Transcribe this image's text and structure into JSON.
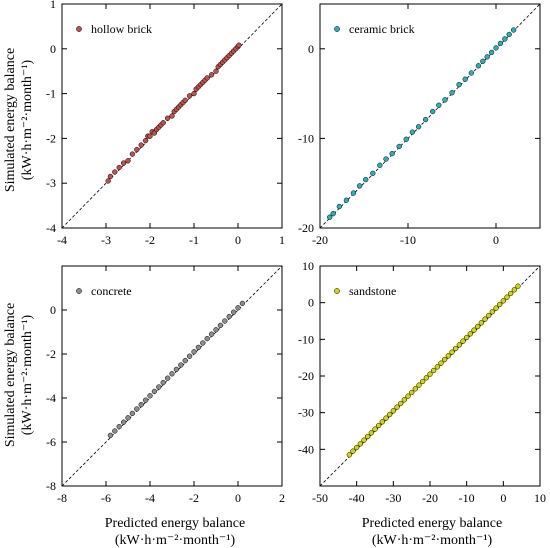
{
  "figure": {
    "ylabel_line1": "Simulated energy balance",
    "ylabel_line2": "(kW·h·m⁻²·month⁻¹)",
    "xlabel_line1": "Predicted energy balance",
    "xlabel_line2": "(kW·h·m⁻²·month⁻¹)"
  },
  "chart_data": [
    {
      "type": "scatter",
      "material": "hollow brick",
      "color": "#c0504d",
      "xlim": [
        -4,
        1
      ],
      "ylim": [
        -4,
        1
      ],
      "xticks": [
        -4,
        -3,
        -2,
        -1,
        0,
        1
      ],
      "yticks": [
        -4,
        -3,
        -2,
        -1,
        0,
        1
      ],
      "reference_line": "y = x (dashed)",
      "series": [
        {
          "name": "hollow brick",
          "points": [
            [
              -2.95,
              -2.95
            ],
            [
              -2.9,
              -2.85
            ],
            [
              -2.8,
              -2.75
            ],
            [
              -2.7,
              -2.65
            ],
            [
              -2.6,
              -2.55
            ],
            [
              -2.5,
              -2.5
            ],
            [
              -2.4,
              -2.35
            ],
            [
              -2.3,
              -2.25
            ],
            [
              -2.2,
              -2.15
            ],
            [
              -2.1,
              -2.05
            ],
            [
              -2.05,
              -1.95
            ],
            [
              -2.0,
              -1.95
            ],
            [
              -1.95,
              -1.85
            ],
            [
              -1.9,
              -1.88
            ],
            [
              -1.85,
              -1.8
            ],
            [
              -1.8,
              -1.75
            ],
            [
              -1.75,
              -1.7
            ],
            [
              -1.7,
              -1.65
            ],
            [
              -1.6,
              -1.55
            ],
            [
              -1.5,
              -1.5
            ],
            [
              -1.45,
              -1.4
            ],
            [
              -1.4,
              -1.35
            ],
            [
              -1.35,
              -1.3
            ],
            [
              -1.3,
              -1.25
            ],
            [
              -1.25,
              -1.2
            ],
            [
              -1.2,
              -1.15
            ],
            [
              -1.1,
              -1.05
            ],
            [
              -1.0,
              -1.0
            ],
            [
              -0.95,
              -0.9
            ],
            [
              -0.9,
              -0.85
            ],
            [
              -0.85,
              -0.8
            ],
            [
              -0.8,
              -0.75
            ],
            [
              -0.75,
              -0.7
            ],
            [
              -0.7,
              -0.65
            ],
            [
              -0.6,
              -0.58
            ],
            [
              -0.5,
              -0.5
            ],
            [
              -0.45,
              -0.4
            ],
            [
              -0.4,
              -0.35
            ],
            [
              -0.35,
              -0.3
            ],
            [
              -0.3,
              -0.25
            ],
            [
              -0.25,
              -0.2
            ],
            [
              -0.2,
              -0.15
            ],
            [
              -0.15,
              -0.1
            ],
            [
              -0.1,
              -0.05
            ],
            [
              -0.05,
              0.0
            ],
            [
              0.0,
              0.05
            ],
            [
              0.02,
              0.08
            ]
          ]
        }
      ]
    },
    {
      "type": "scatter",
      "material": "ceramic brick",
      "color": "#2bb0b8",
      "xlim": [
        -20,
        5
      ],
      "ylim": [
        -20,
        5
      ],
      "xticks": [
        -20,
        -10,
        0
      ],
      "yticks": [
        -20,
        -10,
        0
      ],
      "reference_line": "y = x (dashed)",
      "series": [
        {
          "name": "ceramic brick",
          "points": [
            [
              -18.9,
              -18.8
            ],
            [
              -18.5,
              -18.4
            ],
            [
              -17.8,
              -17.6
            ],
            [
              -17.0,
              -16.9
            ],
            [
              -16.2,
              -16.1
            ],
            [
              -15.5,
              -15.3
            ],
            [
              -14.8,
              -14.6
            ],
            [
              -14.0,
              -13.9
            ],
            [
              -13.2,
              -13.0
            ],
            [
              -12.5,
              -12.3
            ],
            [
              -11.8,
              -11.7
            ],
            [
              -11.0,
              -10.9
            ],
            [
              -10.2,
              -10.1
            ],
            [
              -9.5,
              -9.3
            ],
            [
              -8.8,
              -8.7
            ],
            [
              -8.0,
              -7.9
            ],
            [
              -7.2,
              -7.0
            ],
            [
              -6.5,
              -6.3
            ],
            [
              -5.8,
              -5.7
            ],
            [
              -5.0,
              -4.9
            ],
            [
              -4.2,
              -4.0
            ],
            [
              -3.5,
              -3.4
            ],
            [
              -2.8,
              -2.7
            ],
            [
              -2.0,
              -1.9
            ],
            [
              -1.5,
              -1.4
            ],
            [
              -1.0,
              -0.9
            ],
            [
              -0.5,
              -0.4
            ],
            [
              0.0,
              0.1
            ],
            [
              0.5,
              0.6
            ],
            [
              1.0,
              1.1
            ],
            [
              1.5,
              1.6
            ],
            [
              2.0,
              2.1
            ]
          ]
        }
      ]
    },
    {
      "type": "scatter",
      "material": "concrete",
      "color": "#8c8c8c",
      "xlim": [
        -8,
        2
      ],
      "ylim": [
        -8,
        2
      ],
      "xticks": [
        -8,
        -6,
        -4,
        -2,
        0,
        2
      ],
      "yticks": [
        -8,
        -6,
        -4,
        -2,
        0
      ],
      "reference_line": "y = x (dashed)",
      "series": [
        {
          "name": "concrete",
          "points": [
            [
              -5.8,
              -5.7
            ],
            [
              -5.6,
              -5.5
            ],
            [
              -5.4,
              -5.3
            ],
            [
              -5.2,
              -5.1
            ],
            [
              -5.0,
              -4.9
            ],
            [
              -4.8,
              -4.7
            ],
            [
              -4.6,
              -4.5
            ],
            [
              -4.4,
              -4.3
            ],
            [
              -4.2,
              -4.1
            ],
            [
              -4.0,
              -3.9
            ],
            [
              -3.8,
              -3.7
            ],
            [
              -3.6,
              -3.5
            ],
            [
              -3.4,
              -3.3
            ],
            [
              -3.2,
              -3.1
            ],
            [
              -3.0,
              -2.9
            ],
            [
              -2.8,
              -2.7
            ],
            [
              -2.6,
              -2.5
            ],
            [
              -2.4,
              -2.3
            ],
            [
              -2.2,
              -2.1
            ],
            [
              -2.0,
              -1.9
            ],
            [
              -1.8,
              -1.7
            ],
            [
              -1.6,
              -1.5
            ],
            [
              -1.4,
              -1.3
            ],
            [
              -1.2,
              -1.1
            ],
            [
              -1.0,
              -0.9
            ],
            [
              -0.8,
              -0.7
            ],
            [
              -0.6,
              -0.5
            ],
            [
              -0.4,
              -0.3
            ],
            [
              -0.2,
              -0.1
            ],
            [
              0.0,
              0.1
            ],
            [
              0.2,
              0.3
            ]
          ]
        }
      ]
    },
    {
      "type": "scatter",
      "material": "sandstone",
      "color": "#d4d400",
      "xlim": [
        -50,
        10
      ],
      "ylim": [
        -50,
        10
      ],
      "xticks": [
        -50,
        -40,
        -30,
        -20,
        -10,
        0,
        10
      ],
      "yticks": [
        -40,
        -30,
        -20,
        -10,
        0,
        10
      ],
      "reference_line": "y = x (dashed)",
      "series": [
        {
          "name": "sandstone",
          "points": [
            [
              -42,
              -41.5
            ],
            [
              -41,
              -40.5
            ],
            [
              -40,
              -39.5
            ],
            [
              -39,
              -38.5
            ],
            [
              -38,
              -37.5
            ],
            [
              -37,
              -36.5
            ],
            [
              -36,
              -35.5
            ],
            [
              -35,
              -34.5
            ],
            [
              -34,
              -33.5
            ],
            [
              -33,
              -32.5
            ],
            [
              -32,
              -31.5
            ],
            [
              -31,
              -30.5
            ],
            [
              -30,
              -29.5
            ],
            [
              -29,
              -28.5
            ],
            [
              -28,
              -27.5
            ],
            [
              -27,
              -26.5
            ],
            [
              -26,
              -25.5
            ],
            [
              -25,
              -24.5
            ],
            [
              -24,
              -23.5
            ],
            [
              -23,
              -22.5
            ],
            [
              -22,
              -21.5
            ],
            [
              -21,
              -20.5
            ],
            [
              -20,
              -19.5
            ],
            [
              -19,
              -18.5
            ],
            [
              -18,
              -17.5
            ],
            [
              -17,
              -16.5
            ],
            [
              -16,
              -15.5
            ],
            [
              -15,
              -14.5
            ],
            [
              -14,
              -13.5
            ],
            [
              -13,
              -12.5
            ],
            [
              -12,
              -11.5
            ],
            [
              -11,
              -10.5
            ],
            [
              -10,
              -9.5
            ],
            [
              -9,
              -8.5
            ],
            [
              -8,
              -7.5
            ],
            [
              -7,
              -6.5
            ],
            [
              -6,
              -5.5
            ],
            [
              -5,
              -4.5
            ],
            [
              -4,
              -3.5
            ],
            [
              -3,
              -2.5
            ],
            [
              -2,
              -1.5
            ],
            [
              -1,
              -0.5
            ],
            [
              0,
              0.5
            ],
            [
              1,
              1.5
            ],
            [
              2,
              2.5
            ],
            [
              3,
              3.5
            ],
            [
              4,
              4.5
            ]
          ]
        }
      ]
    }
  ]
}
